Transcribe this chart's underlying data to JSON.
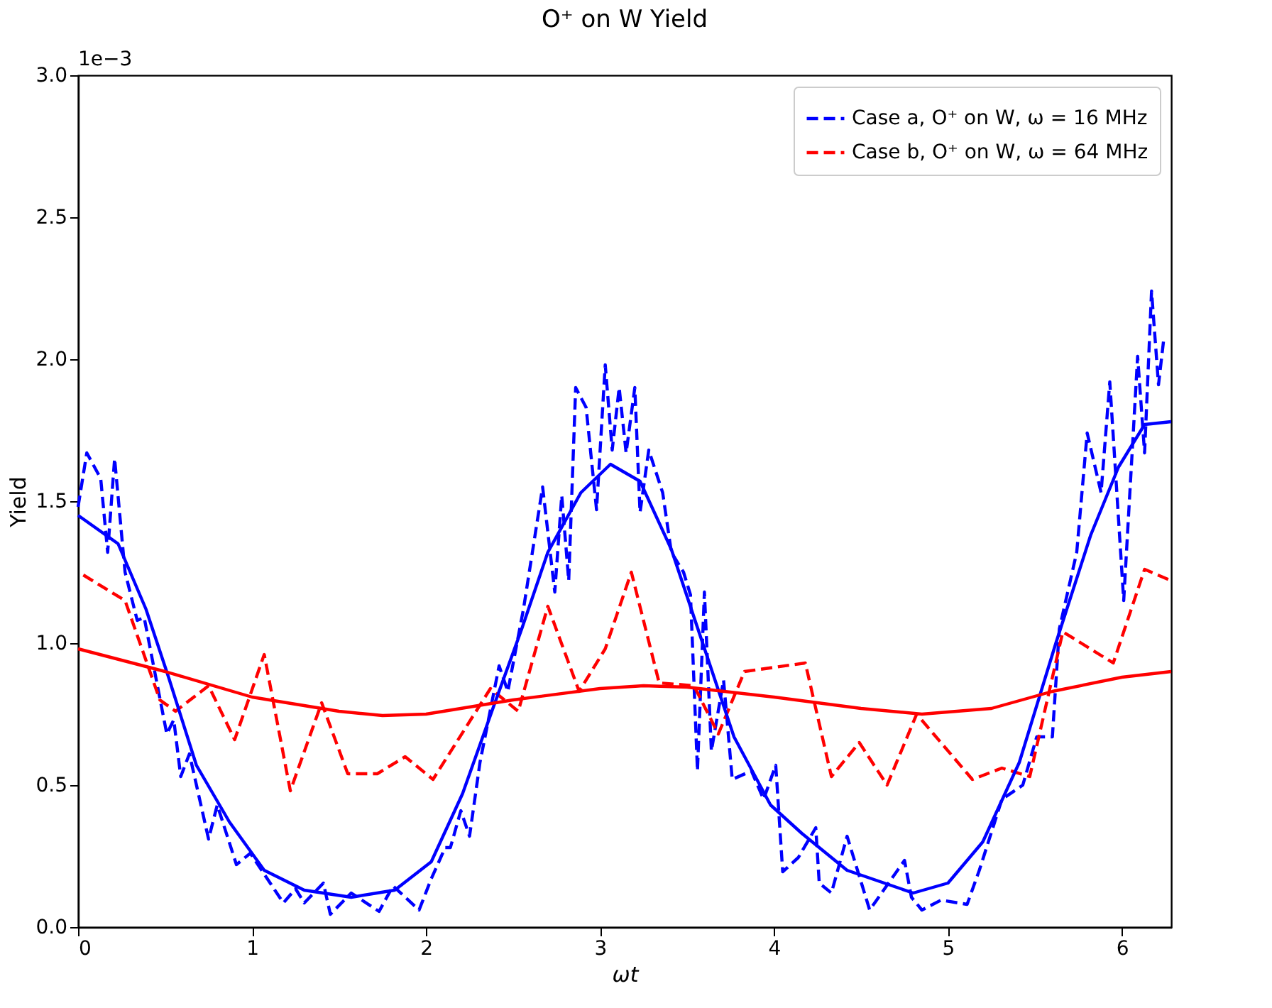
{
  "chart_data": {
    "type": "line",
    "title": "O⁺ on W Yield",
    "xlabel": "ωt",
    "ylabel": "Yield",
    "annotations": [
      "1e−3"
    ],
    "xlim": [
      0,
      6.283
    ],
    "xticks": [
      0,
      1,
      2,
      3,
      4,
      5,
      6
    ],
    "ylim": [
      0,
      3.0
    ],
    "yticks": [
      {
        "value": 0,
        "label": "0.0"
      },
      0.5,
      {
        "value": 1,
        "label": "1.0"
      },
      1.5,
      {
        "value": 2,
        "label": "2.0"
      },
      2.5,
      {
        "value": 3,
        "label": "3.0"
      }
    ],
    "grid": false,
    "legend": "top right",
    "marker": "none",
    "series": [
      {
        "name": " Case a, O⁺ on W, ω = 16 MHz",
        "color": "#0000ff",
        "line_style": "dashed",
        "x": [
          0,
          0.05,
          0.13,
          0.17,
          0.21,
          0.27,
          0.34,
          0.38,
          0.51,
          0.55,
          0.59,
          0.64,
          0.75,
          0.8,
          0.91,
          0.99,
          1.18,
          1.25,
          1.3,
          1.41,
          1.45,
          1.57,
          1.73,
          1.81,
          1.96,
          2.03,
          2.11,
          2.14,
          2.2,
          2.25,
          2.31,
          2.42,
          2.47,
          2.56,
          2.67,
          2.74,
          2.78,
          2.82,
          2.86,
          2.92,
          2.98,
          3.03,
          3.07,
          3.11,
          3.15,
          3.2,
          3.23,
          3.28,
          3.36,
          3.41,
          3.48,
          3.52,
          3.56,
          3.6,
          3.64,
          3.71,
          3.76,
          3.87,
          3.94,
          4.01,
          4.05,
          4.14,
          4.24,
          4.26,
          4.33,
          4.42,
          4.55,
          4.75,
          4.79,
          4.85,
          4.96,
          5.11,
          5.18,
          5.31,
          5.43,
          5.51,
          5.6,
          5.64,
          5.74,
          5.8,
          5.88,
          5.93,
          6.01,
          6.09,
          6.13,
          6.17,
          6.21,
          6.24
        ],
        "values": [
          1.48,
          1.67,
          1.58,
          1.32,
          1.65,
          1.25,
          1.08,
          1.09,
          0.68,
          0.73,
          0.53,
          0.61,
          0.31,
          0.43,
          0.22,
          0.26,
          0.085,
          0.135,
          0.085,
          0.155,
          0.045,
          0.12,
          0.055,
          0.145,
          0.06,
          0.17,
          0.28,
          0.28,
          0.41,
          0.32,
          0.58,
          0.92,
          0.83,
          1.12,
          1.55,
          1.18,
          1.52,
          1.22,
          1.9,
          1.83,
          1.47,
          1.98,
          1.68,
          1.9,
          1.67,
          1.9,
          1.46,
          1.68,
          1.53,
          1.32,
          1.25,
          1.17,
          0.55,
          1.18,
          0.62,
          0.87,
          0.52,
          0.55,
          0.45,
          0.57,
          0.195,
          0.245,
          0.35,
          0.155,
          0.12,
          0.32,
          0.06,
          0.235,
          0.105,
          0.06,
          0.095,
          0.08,
          0.2,
          0.45,
          0.5,
          0.67,
          0.67,
          1.05,
          1.32,
          1.74,
          1.53,
          1.92,
          1.15,
          2.01,
          1.67,
          2.24,
          1.91,
          2.07
        ]
      },
      {
        "name": "Case b, O⁺ on W, ω = 64 MHz",
        "color": "#ff0000",
        "line_style": "dashed",
        "x": [
          0.03,
          0.27,
          0.47,
          0.56,
          0.75,
          0.9,
          1.07,
          1.22,
          1.4,
          1.55,
          1.72,
          1.88,
          2.04,
          2.37,
          2.53,
          2.7,
          2.88,
          3.03,
          3.18,
          3.34,
          3.54,
          3.68,
          3.83,
          4.18,
          4.33,
          4.49,
          4.65,
          4.82,
          5.14,
          5.31,
          5.47,
          5.66,
          5.95,
          6.13,
          6.283
        ],
        "values": [
          1.24,
          1.15,
          0.8,
          0.76,
          0.85,
          0.66,
          0.96,
          0.48,
          0.79,
          0.54,
          0.54,
          0.6,
          0.52,
          0.84,
          0.76,
          1.13,
          0.83,
          0.98,
          1.25,
          0.86,
          0.85,
          0.68,
          0.9,
          0.93,
          0.53,
          0.65,
          0.5,
          0.75,
          0.52,
          0.56,
          0.53,
          1.04,
          0.93,
          1.26,
          1.22
        ]
      },
      {
        "color": "#0000ff",
        "line_style": "solid",
        "x": [
          0,
          0.23,
          0.39,
          0.52,
          0.68,
          0.87,
          1.07,
          1.3,
          1.57,
          1.82,
          2.03,
          2.21,
          2.39,
          2.55,
          2.7,
          2.89,
          3.06,
          3.23,
          3.41,
          3.59,
          3.77,
          3.98,
          4.16,
          4.42,
          4.8,
          5.0,
          5.2,
          5.41,
          5.62,
          5.82,
          5.98,
          6.13,
          6.283
        ],
        "values": [
          1.45,
          1.35,
          1.12,
          0.88,
          0.57,
          0.37,
          0.2,
          0.13,
          0.105,
          0.13,
          0.23,
          0.47,
          0.78,
          1.05,
          1.32,
          1.53,
          1.63,
          1.57,
          1.33,
          1.0,
          0.67,
          0.43,
          0.33,
          0.2,
          0.12,
          0.155,
          0.3,
          0.58,
          1.0,
          1.38,
          1.62,
          1.77,
          1.78
        ]
      },
      {
        "color": "#ff0000",
        "line_style": "solid",
        "x": [
          0,
          0.5,
          1,
          1.5,
          1.75,
          2,
          2.5,
          3,
          3.25,
          3.5,
          4,
          4.5,
          4.85,
          5.25,
          5.6,
          6,
          6.283
        ],
        "values": [
          0.98,
          0.9,
          0.81,
          0.76,
          0.745,
          0.75,
          0.8,
          0.84,
          0.85,
          0.845,
          0.81,
          0.77,
          0.75,
          0.77,
          0.83,
          0.88,
          0.9
        ]
      }
    ]
  }
}
